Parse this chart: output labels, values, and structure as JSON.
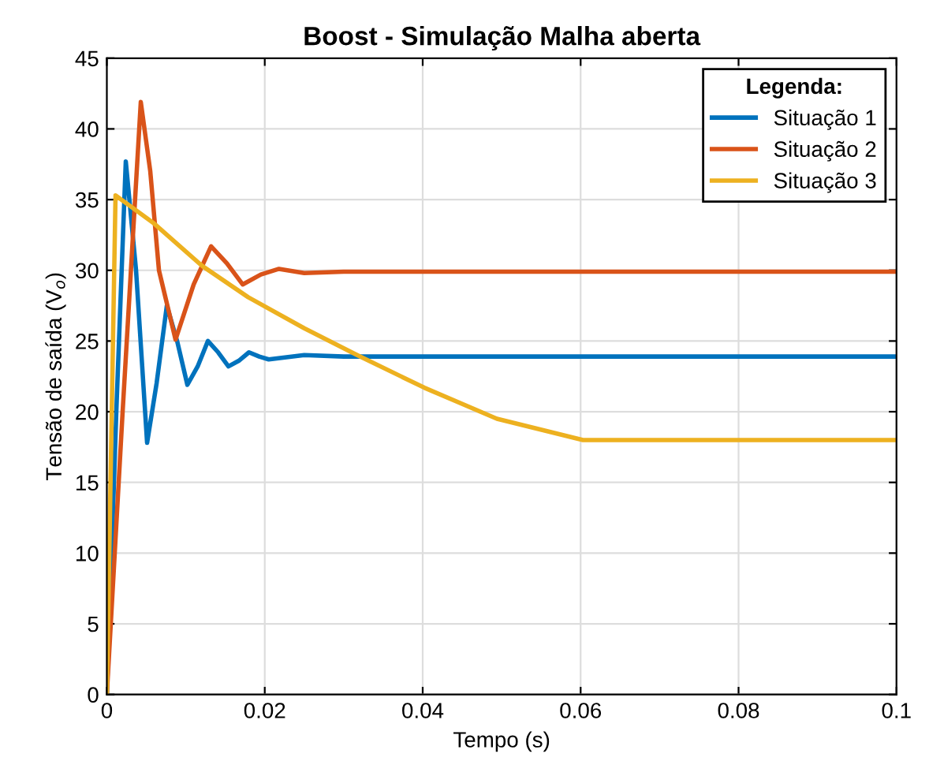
{
  "chart_data": {
    "type": "line",
    "title": "Boost - Simulação Malha aberta",
    "xlabel": "Tempo (s)",
    "ylabel": "Tensão de saída (V$_{o}$)",
    "legend_title": "Legenda:",
    "legend": "top right",
    "grid": true,
    "xlim": [
      0,
      0.1
    ],
    "xticks": [
      0,
      0.02,
      0.04,
      0.06,
      0.08,
      0.1
    ],
    "ylim": [
      0,
      45
    ],
    "yticks": [
      0,
      5,
      10,
      15,
      20,
      25,
      30,
      35,
      40,
      45
    ],
    "series": [
      {
        "name": "Situação 1",
        "color": "#0072bd",
        "x": [
          0,
          0.0012,
          0.0024,
          0.0037,
          0.0051,
          0.0063,
          0.0076,
          0.0089,
          0.0102,
          0.0115,
          0.0128,
          0.0141,
          0.0154,
          0.0167,
          0.018,
          0.0193,
          0.0205,
          0.025,
          0.03,
          0.04,
          0.06,
          0.08,
          0.1
        ],
        "values": [
          0,
          20,
          37.7,
          30,
          17.8,
          22,
          27.5,
          25,
          21.9,
          23.2,
          25,
          24.2,
          23.2,
          23.6,
          24.2,
          23.9,
          23.7,
          24,
          23.9,
          23.9,
          23.9,
          23.9,
          23.9
        ]
      },
      {
        "name": "Situação 2",
        "color": "#d95319",
        "x": [
          0,
          0.002,
          0.0043,
          0.0055,
          0.0066,
          0.0087,
          0.011,
          0.0132,
          0.0152,
          0.0172,
          0.0195,
          0.0218,
          0.025,
          0.03,
          0.04,
          0.06,
          0.08,
          0.1
        ],
        "values": [
          0,
          20,
          41.9,
          37,
          30,
          25.1,
          29,
          31.7,
          30.5,
          29,
          29.7,
          30.1,
          29.8,
          29.9,
          29.9,
          29.9,
          29.9,
          29.9
        ]
      },
      {
        "name": "Situação 3",
        "color": "#edb120",
        "x": [
          0,
          0.0011,
          0.006,
          0.0121,
          0.0179,
          0.025,
          0.0317,
          0.0402,
          0.0494,
          0.0603,
          0.07,
          0.08,
          0.09,
          0.1
        ],
        "values": [
          0,
          35.3,
          33.3,
          30.3,
          28.1,
          25.9,
          24,
          21.7,
          19.5,
          18,
          18,
          18,
          18,
          18
        ]
      }
    ]
  }
}
